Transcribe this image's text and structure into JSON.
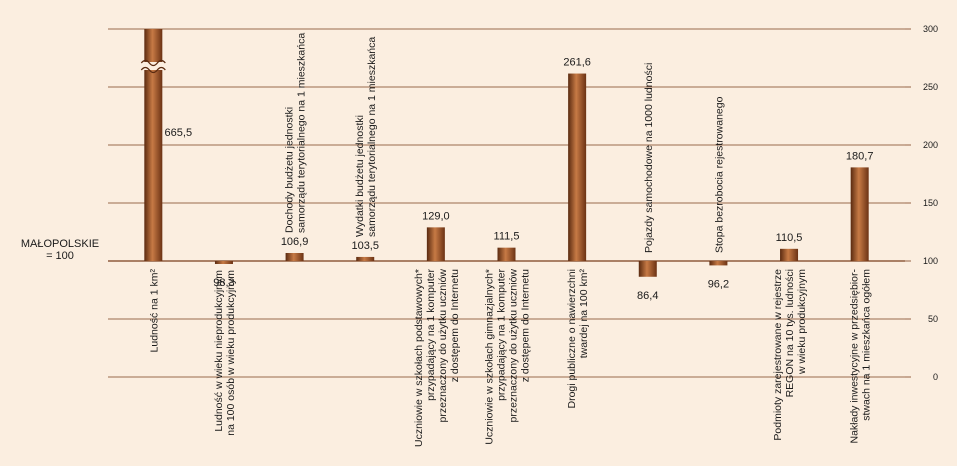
{
  "chart_data": {
    "type": "bar",
    "baseline": 100,
    "baseline_label": [
      "MAŁOPOLSKIE",
      "= 100"
    ],
    "yticks": [
      "300",
      "250",
      "200",
      "150",
      "100",
      "50",
      "0"
    ],
    "ylim": [
      0,
      300
    ],
    "categories": [
      [
        "Ludność na 1 km²"
      ],
      [
        "Ludność w wieku nieprodukcyjnym",
        "na 100 osób w wieku produkcyjnym"
      ],
      [
        "Dochody budżetu jednostki",
        "samorządu terytorialnego na 1 mieszkańca"
      ],
      [
        "Wydatki budżetu jednostki",
        "samorządu terytorialnego na 1 mieszkańca"
      ],
      [
        "Uczniowie w szkołach podstawowych*",
        "przypadający na 1 komputer",
        "przeznaczony do użytku uczniów",
        "z dostępem do Internetu"
      ],
      [
        "Uczniowie w szkołach gimnazjalnych*",
        "przypadający na 1 komputer",
        "przeznaczony do użytku uczniów",
        "z dostępem do Internetu"
      ],
      [
        "Drogi publiczne o nawierzchni",
        "twardej na 100 km²"
      ],
      [
        "Pojazdy samochodowe na 1000 ludności"
      ],
      [
        "Stopa bezrobocia rejestrowanego"
      ],
      [
        "Podmioty zarejestrowane w rejestrze",
        "REGON na 10 tys. ludności",
        "w wieku produkcyjnym"
      ],
      [
        "Nakłady inwestycyjne w przedsiębior-",
        "stwach na 1 mieszkańca ogółem"
      ]
    ],
    "values": [
      665.5,
      98.3,
      106.9,
      103.5,
      129.0,
      111.5,
      261.6,
      86.4,
      96.2,
      110.5,
      180.7
    ],
    "value_labels": [
      "665,5",
      "98,3",
      "106,9",
      "103,5",
      "129,0",
      "111,5",
      "261,6",
      "86,4",
      "96,2",
      "110,5",
      "180,7"
    ],
    "axis_break_on_first_bar": true,
    "colors": {
      "background": "#fbeee0",
      "grid": "#7a3f1d",
      "bar_dark": "#5a2a10",
      "bar_mid": "#b5683a",
      "bar_light": "#d89a6a"
    }
  }
}
